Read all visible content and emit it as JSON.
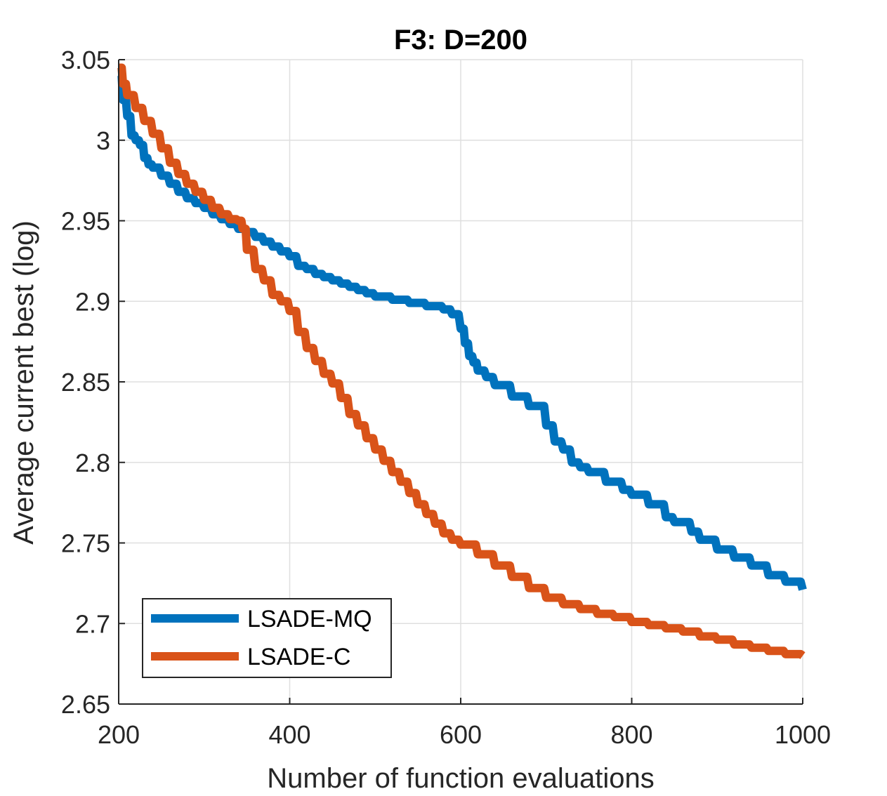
{
  "chart_data": {
    "type": "line",
    "title": "F3: D=200",
    "xlabel": "Number of function evaluations",
    "ylabel": "Average current best (log)",
    "xlim": [
      200,
      1000
    ],
    "ylim": [
      2.65,
      3.05
    ],
    "x_ticks": [
      200,
      400,
      600,
      800,
      1000
    ],
    "x_tick_labels": [
      "200",
      "400",
      "600",
      "800",
      "1000"
    ],
    "y_ticks": [
      2.65,
      2.7,
      2.75,
      2.8,
      2.85,
      2.9,
      2.95,
      3,
      3.05
    ],
    "y_tick_labels": [
      "2.65",
      "2.7",
      "2.75",
      "2.8",
      "2.85",
      "2.9",
      "2.95",
      "3",
      "3.05"
    ],
    "grid": true,
    "legend_position": "bottom-left",
    "series": [
      {
        "name": "LSADE-MQ",
        "color": "#0072BD",
        "x": [
          200,
          205,
          210,
          215,
          220,
          225,
          230,
          235,
          240,
          250,
          260,
          270,
          280,
          290,
          300,
          310,
          320,
          330,
          340,
          350,
          360,
          370,
          380,
          390,
          400,
          410,
          420,
          430,
          440,
          450,
          460,
          470,
          480,
          490,
          500,
          520,
          540,
          560,
          580,
          590,
          600,
          605,
          610,
          615,
          620,
          630,
          640,
          660,
          680,
          700,
          710,
          720,
          730,
          740,
          750,
          770,
          790,
          800,
          820,
          840,
          850,
          870,
          880,
          900,
          920,
          940,
          960,
          980,
          1000
        ],
        "values": [
          3.04,
          3.025,
          3.015,
          3.003,
          3.0,
          2.997,
          2.989,
          2.985,
          2.983,
          2.978,
          2.973,
          2.968,
          2.964,
          2.961,
          2.958,
          2.954,
          2.951,
          2.948,
          2.945,
          2.943,
          2.94,
          2.937,
          2.934,
          2.931,
          2.928,
          2.922,
          2.92,
          2.917,
          2.915,
          2.913,
          2.911,
          2.909,
          2.907,
          2.905,
          2.903,
          2.901,
          2.899,
          2.897,
          2.895,
          2.892,
          2.883,
          2.874,
          2.866,
          2.862,
          2.857,
          2.853,
          2.848,
          2.841,
          2.835,
          2.823,
          2.813,
          2.808,
          2.8,
          2.797,
          2.794,
          2.788,
          2.783,
          2.78,
          2.774,
          2.766,
          2.763,
          2.757,
          2.752,
          2.746,
          2.741,
          2.736,
          2.73,
          2.726,
          2.721
        ]
      },
      {
        "name": "LSADE-C",
        "color": "#D95319",
        "x": [
          200,
          205,
          210,
          220,
          230,
          240,
          250,
          260,
          270,
          280,
          290,
          300,
          310,
          320,
          330,
          340,
          345,
          350,
          360,
          370,
          380,
          390,
          400,
          410,
          420,
          430,
          440,
          450,
          460,
          470,
          480,
          490,
          500,
          510,
          520,
          530,
          540,
          550,
          560,
          570,
          580,
          590,
          600,
          620,
          640,
          660,
          680,
          700,
          720,
          740,
          760,
          780,
          800,
          820,
          840,
          860,
          880,
          900,
          920,
          940,
          960,
          980,
          1000
        ],
        "values": [
          3.045,
          3.035,
          3.028,
          3.02,
          3.012,
          3.004,
          2.995,
          2.986,
          2.979,
          2.973,
          2.968,
          2.963,
          2.958,
          2.954,
          2.951,
          2.95,
          2.945,
          2.932,
          2.92,
          2.913,
          2.904,
          2.9,
          2.894,
          2.881,
          2.871,
          2.863,
          2.855,
          2.849,
          2.84,
          2.83,
          2.823,
          2.815,
          2.808,
          2.801,
          2.794,
          2.788,
          2.781,
          2.774,
          2.768,
          2.762,
          2.756,
          2.752,
          2.749,
          2.743,
          2.736,
          2.729,
          2.722,
          2.716,
          2.712,
          2.709,
          2.706,
          2.704,
          2.701,
          2.699,
          2.697,
          2.695,
          2.692,
          2.69,
          2.687,
          2.685,
          2.683,
          2.681,
          2.68
        ]
      }
    ]
  }
}
